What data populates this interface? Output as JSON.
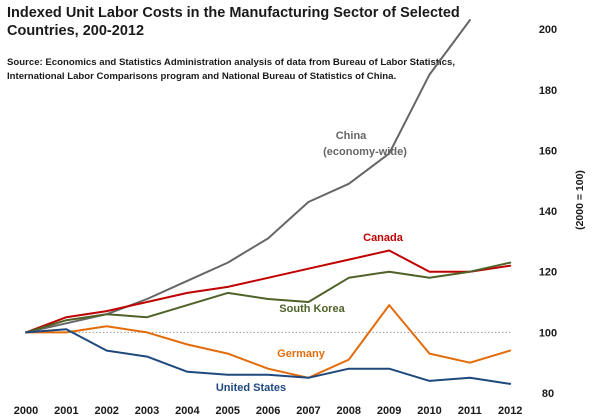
{
  "chart_data": {
    "type": "line",
    "title_line1": "Indexed Unit Labor Costs in the Manufacturing Sector of Selected",
    "title_line2": "Countries, 200-2012",
    "source_line1": "Source: Economics and Statistics Administration analysis of data from Bureau of Labor Statistics,",
    "source_line2": "International Labor Comparisons program and National Bureau of Statistics of China.",
    "ylabel": "(2000 = 100)",
    "xlabel": "",
    "x": [
      "2000",
      "2001",
      "2002",
      "2003",
      "2004",
      "2005",
      "2006",
      "2007",
      "2008",
      "2009",
      "2010",
      "2011",
      "2012"
    ],
    "ylim": [
      80,
      205
    ],
    "yticks": [
      80,
      100,
      120,
      140,
      160,
      180,
      200
    ],
    "reference_line": 100,
    "grid": false,
    "legend": "inline labels",
    "series": [
      {
        "name": "China",
        "name_line2": "(economy-wide)",
        "color": "#666666",
        "values": [
          100,
          103,
          106,
          111,
          117,
          123,
          131,
          143,
          149,
          159,
          185,
          203,
          null
        ]
      },
      {
        "name": "Canada",
        "color": "#c00000",
        "values": [
          100,
          105,
          107,
          110,
          113,
          115,
          118,
          121,
          124,
          127,
          120,
          120,
          122
        ]
      },
      {
        "name": "South Korea",
        "color": "#4f6228",
        "values": [
          100,
          104,
          106,
          105,
          109,
          113,
          111,
          110,
          118,
          120,
          118,
          120,
          123
        ]
      },
      {
        "name": "Germany",
        "color": "#e36c09",
        "values": [
          100,
          100,
          102,
          100,
          96,
          93,
          88,
          85,
          91,
          109,
          93,
          90,
          94
        ]
      },
      {
        "name": "United States",
        "color": "#1f497d",
        "values": [
          100,
          101,
          94,
          92,
          87,
          86,
          86,
          85,
          88,
          88,
          84,
          85,
          83
        ]
      }
    ]
  }
}
